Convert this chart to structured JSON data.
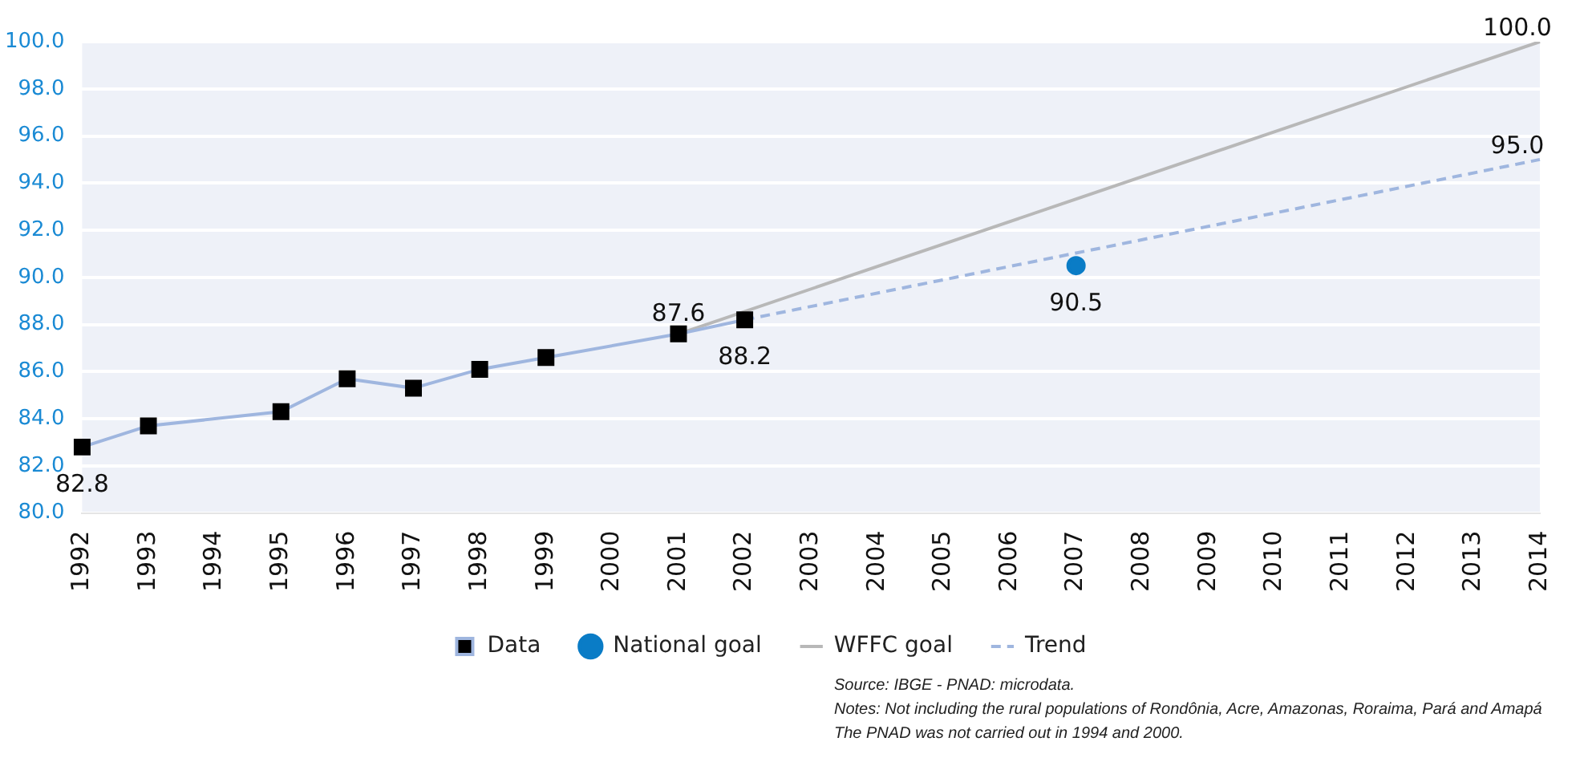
{
  "chart_data": {
    "type": "line",
    "categories": [
      "1992",
      "1993",
      "1994",
      "1995",
      "1996",
      "1997",
      "1998",
      "1999",
      "2000",
      "2001",
      "2002",
      "2003",
      "2004",
      "2005",
      "2006",
      "2007",
      "2008",
      "2009",
      "2010",
      "2011",
      "2012",
      "2013",
      "2014"
    ],
    "series": [
      {
        "name": "Data",
        "type": "line",
        "color": "#9fb6df",
        "marker": "square",
        "line_style": "solid",
        "values": [
          82.8,
          83.7,
          null,
          84.3,
          85.7,
          85.3,
          86.1,
          86.6,
          null,
          87.6,
          88.2,
          null,
          null,
          null,
          null,
          null,
          null,
          null,
          null,
          null,
          null,
          null,
          null
        ],
        "value_labels": [
          "82.8",
          null,
          null,
          null,
          null,
          null,
          null,
          null,
          null,
          "87.6",
          "88.2",
          null,
          null,
          null,
          null,
          null,
          null,
          null,
          null,
          null,
          null,
          null,
          null
        ]
      },
      {
        "name": "National goal",
        "type": "scatter",
        "color": "#0a7cc6",
        "marker": "circle",
        "values": [
          null,
          null,
          null,
          null,
          null,
          null,
          null,
          null,
          null,
          null,
          null,
          null,
          null,
          null,
          null,
          90.5,
          null,
          null,
          null,
          null,
          null,
          null,
          null
        ],
        "value_labels": [
          null,
          null,
          null,
          null,
          null,
          null,
          null,
          null,
          null,
          null,
          null,
          null,
          null,
          null,
          null,
          "90.5",
          null,
          null,
          null,
          null,
          null,
          null,
          null
        ]
      },
      {
        "name": "WFFC goal",
        "type": "line",
        "color": "#b8b8b8",
        "marker": "none",
        "line_style": "solid",
        "values": [
          null,
          null,
          null,
          null,
          null,
          null,
          null,
          null,
          null,
          87.6,
          null,
          null,
          null,
          null,
          null,
          null,
          null,
          null,
          null,
          null,
          null,
          null,
          100.0
        ],
        "value_labels": [
          null,
          null,
          null,
          null,
          null,
          null,
          null,
          null,
          null,
          null,
          null,
          null,
          null,
          null,
          null,
          null,
          null,
          null,
          null,
          null,
          null,
          null,
          "100.0"
        ]
      },
      {
        "name": "Trend",
        "type": "line",
        "color": "#9fb6df",
        "marker": "none",
        "line_style": "dashed",
        "values": [
          null,
          null,
          null,
          null,
          null,
          null,
          null,
          null,
          null,
          null,
          88.2,
          null,
          null,
          null,
          null,
          null,
          null,
          null,
          null,
          null,
          null,
          null,
          95.0
        ],
        "value_labels": [
          null,
          null,
          null,
          null,
          null,
          null,
          null,
          null,
          null,
          null,
          null,
          null,
          null,
          null,
          null,
          null,
          null,
          null,
          null,
          null,
          null,
          null,
          "95.0"
        ]
      }
    ],
    "ylim": [
      80,
      100
    ],
    "yticks": [
      {
        "value": 80,
        "label": "80.0"
      },
      {
        "value": 82,
        "label": "82.0"
      },
      {
        "value": 84,
        "label": "84.0"
      },
      {
        "value": 86,
        "label": "86.0"
      },
      {
        "value": 88,
        "label": "88.0"
      },
      {
        "value": 90,
        "label": "90.0"
      },
      {
        "value": 92,
        "label": "92.0"
      },
      {
        "value": 94,
        "label": "94.0"
      },
      {
        "value": 96,
        "label": "96.0"
      },
      {
        "value": 98,
        "label": "98.0"
      },
      {
        "value": 100,
        "label": "100.0"
      }
    ],
    "grid": "y",
    "legend": "bottom",
    "annotations": [
      "Source: IBGE - PNAD: microdata.",
      "Notes: Not including the rural populations of Rondônia, Acre, Amazonas, Roraima, Pará and Amapá",
      "The PNAD was not carried out in 1994 and 2000."
    ]
  }
}
